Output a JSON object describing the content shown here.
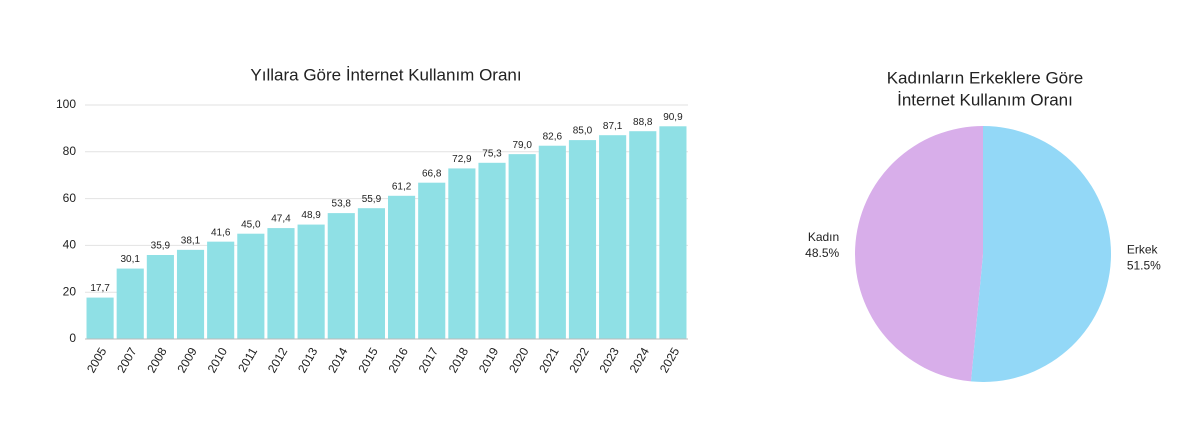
{
  "chart_data": [
    {
      "type": "bar",
      "title": "Yıllara Göre İnternet Kullanım Oranı",
      "categories": [
        "2005",
        "2007",
        "2008",
        "2009",
        "2010",
        "2011",
        "2012",
        "2013",
        "2014",
        "2015",
        "2016",
        "2017",
        "2018",
        "2019",
        "2020",
        "2021",
        "2022",
        "2023",
        "2024",
        "2025"
      ],
      "values": [
        17.7,
        30.1,
        35.9,
        38.1,
        41.6,
        45.0,
        47.4,
        48.9,
        53.8,
        55.9,
        61.2,
        66.8,
        72.9,
        75.3,
        79.0,
        82.6,
        85.0,
        87.1,
        88.8,
        90.9
      ],
      "value_labels": [
        "17,7",
        "30,1",
        "35,9",
        "38,1",
        "41,6",
        "45,0",
        "47,4",
        "48,9",
        "53,8",
        "55,9",
        "61,2",
        "66,8",
        "72,9",
        "75,3",
        "79,0",
        "82,6",
        "85,0",
        "87,1",
        "88,8",
        "90,9"
      ],
      "color": "#8fe0e5",
      "ylim": [
        0,
        100
      ],
      "yticks": [
        0,
        20,
        40,
        60,
        80,
        100
      ],
      "grid": true
    },
    {
      "type": "pie",
      "title": [
        "Kadınların Erkeklere Göre",
        "İnternet Kullanım Oranı"
      ],
      "categories": [
        "Erkek",
        "Kadın"
      ],
      "values": [
        51.5,
        48.5
      ],
      "value_labels": [
        "51.5%",
        "48.5%"
      ],
      "colors": [
        "#93d8f7",
        "#d8aeea"
      ]
    }
  ]
}
